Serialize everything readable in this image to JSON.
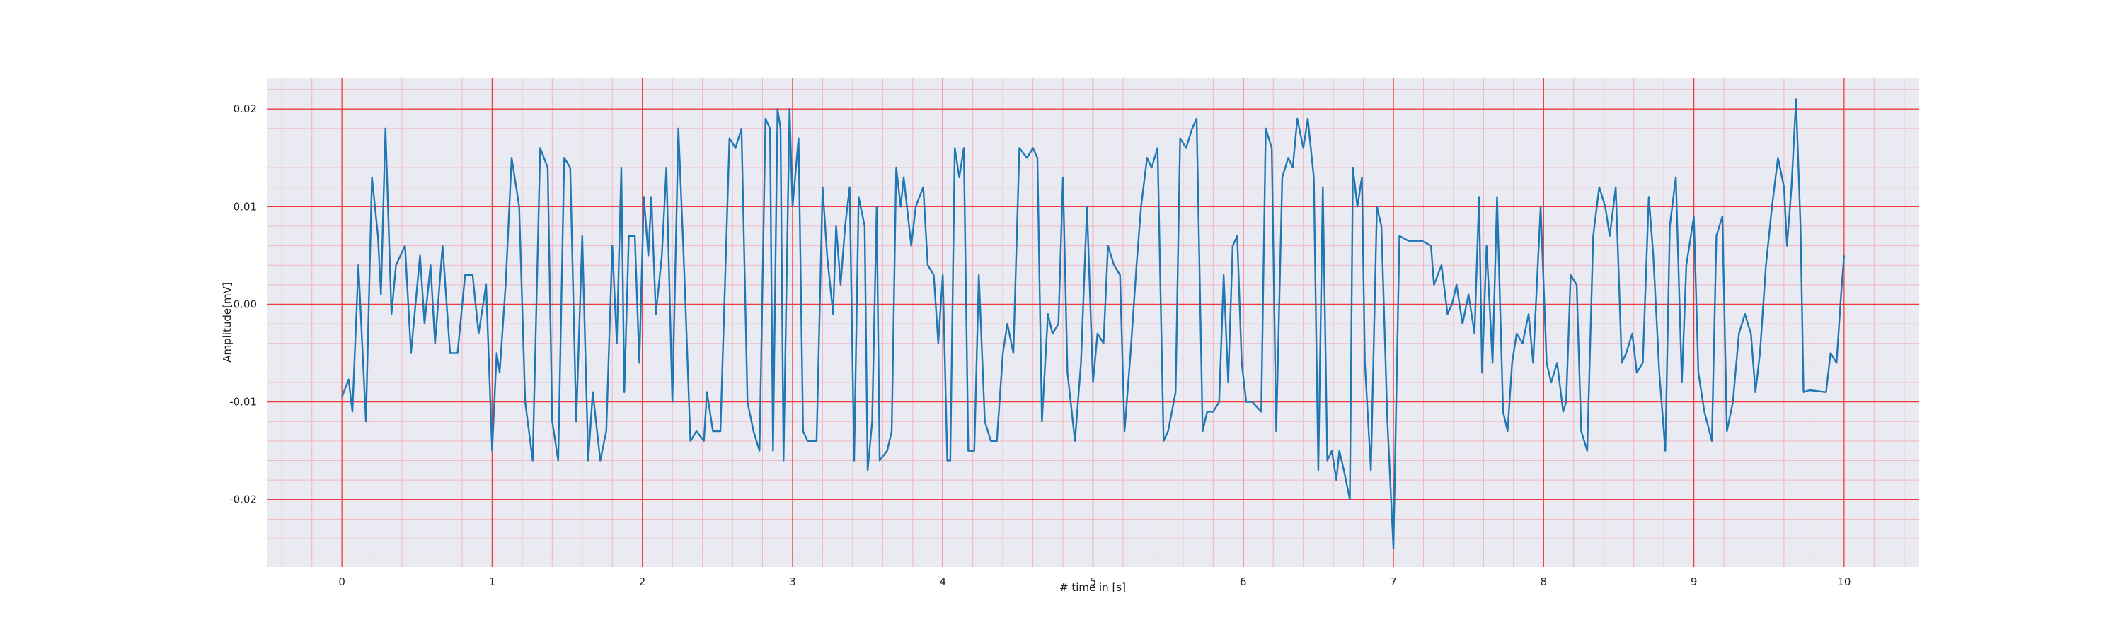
{
  "chart_data": {
    "type": "line",
    "xlabel": "# time in [s]",
    "ylabel": "Amplitude[mV]",
    "xlim": [
      -0.5,
      10.5
    ],
    "ylim": [
      -0.0269,
      0.0232
    ],
    "xticks": [
      0,
      1,
      2,
      3,
      4,
      5,
      6,
      7,
      8,
      9,
      10
    ],
    "yticks": [
      {
        "value": -0.02,
        "label": "-0.02"
      },
      {
        "value": -0.01,
        "label": "-0.01"
      },
      {
        "value": 0,
        "label": "0.00"
      },
      {
        "value": 0.01,
        "label": "0.01"
      },
      {
        "value": 0.02,
        "label": "0.02"
      }
    ],
    "xminorticks": [
      -0.4,
      -0.2,
      0.2,
      0.4,
      0.6,
      0.8,
      1.2,
      1.4,
      1.6,
      1.8,
      2.2,
      2.4,
      2.6,
      2.8,
      3.2,
      3.4,
      3.6,
      3.8,
      4.2,
      4.4,
      4.6,
      4.8,
      5.2,
      5.4,
      5.6,
      5.8,
      6.2,
      6.4,
      6.6,
      6.8,
      7.2,
      7.4,
      7.6,
      7.8,
      8.2,
      8.4,
      8.6,
      8.8,
      9.2,
      9.4,
      9.6,
      9.8,
      10.2,
      10.4
    ],
    "yminorticks": [
      -0.026,
      -0.024,
      -0.022,
      -0.018,
      -0.016,
      -0.014,
      -0.012,
      -0.008,
      -0.006,
      -0.004,
      -0.002,
      0.002,
      0.004,
      0.006,
      0.008,
      0.012,
      0.014,
      0.016,
      0.018,
      0.022
    ],
    "grid": true,
    "minor_grid": true,
    "grid_color": "#f03c3c",
    "minor_grid_color": "#f2b8c0",
    "background": "#eaeaf2",
    "x": [
      0,
      0.045,
      0.07,
      0.11,
      0.16,
      0.2,
      0.24,
      0.26,
      0.29,
      0.33,
      0.36,
      0.42,
      0.46,
      0.52,
      0.55,
      0.59,
      0.62,
      0.67,
      0.72,
      0.77,
      0.82,
      0.87,
      0.91,
      0.96,
      1.0,
      1.03,
      1.05,
      1.09,
      1.13,
      1.18,
      1.22,
      1.27,
      1.32,
      1.37,
      1.4,
      1.44,
      1.48,
      1.52,
      1.56,
      1.6,
      1.64,
      1.67,
      1.72,
      1.76,
      1.8,
      1.83,
      1.86,
      1.88,
      1.91,
      1.95,
      1.98,
      2.01,
      2.04,
      2.06,
      2.09,
      2.13,
      2.16,
      2.2,
      2.24,
      2.28,
      2.32,
      2.36,
      2.41,
      2.43,
      2.47,
      2.52,
      2.58,
      2.62,
      2.66,
      2.7,
      2.74,
      2.78,
      2.82,
      2.85,
      2.87,
      2.9,
      2.92,
      2.94,
      2.98,
      3.0,
      3.04,
      3.07,
      3.1,
      3.16,
      3.2,
      3.23,
      3.27,
      3.29,
      3.32,
      3.35,
      3.38,
      3.41,
      3.44,
      3.48,
      3.5,
      3.53,
      3.56,
      3.58,
      3.63,
      3.66,
      3.69,
      3.72,
      3.74,
      3.79,
      3.82,
      3.87,
      3.9,
      3.94,
      3.97,
      4.0,
      4.03,
      4.05,
      4.08,
      4.11,
      4.14,
      4.17,
      4.21,
      4.24,
      4.28,
      4.32,
      4.36,
      4.4,
      4.43,
      4.47,
      4.51,
      4.56,
      4.6,
      4.63,
      4.66,
      4.7,
      4.73,
      4.77,
      4.8,
      4.83,
      4.88,
      4.92,
      4.96,
      5.0,
      5.03,
      5.07,
      5.1,
      5.14,
      5.18,
      5.21,
      5.25,
      5.29,
      5.32,
      5.36,
      5.39,
      5.43,
      5.47,
      5.5,
      5.55,
      5.58,
      5.62,
      5.66,
      5.69,
      5.73,
      5.76,
      5.8,
      5.84,
      5.87,
      5.9,
      5.93,
      5.96,
      5.99,
      6.02,
      6.06,
      6.12,
      6.15,
      6.19,
      6.22,
      6.26,
      6.3,
      6.33,
      6.36,
      6.4,
      6.43,
      6.47,
      6.5,
      6.53,
      6.56,
      6.59,
      6.62,
      6.64,
      6.67,
      6.71,
      6.73,
      6.76,
      6.79,
      6.81,
      6.85,
      6.89,
      6.92,
      6.96,
      7.0,
      7.04,
      7.1,
      7.19,
      7.25,
      7.27,
      7.32,
      7.36,
      7.39,
      7.42,
      7.46,
      7.5,
      7.54,
      7.57,
      7.59,
      7.62,
      7.66,
      7.69,
      7.73,
      7.76,
      7.79,
      7.82,
      7.86,
      7.9,
      7.93,
      7.98,
      8.02,
      8.05,
      8.09,
      8.13,
      8.15,
      8.18,
      8.22,
      8.25,
      8.29,
      8.33,
      8.37,
      8.41,
      8.44,
      8.48,
      8.52,
      8.55,
      8.59,
      8.62,
      8.66,
      8.7,
      8.73,
      8.77,
      8.81,
      8.84,
      8.88,
      8.92,
      8.95,
      9.0,
      9.03,
      9.07,
      9.12,
      9.15,
      9.19,
      9.22,
      9.26,
      9.3,
      9.34,
      9.38,
      9.41,
      9.44,
      9.48,
      9.52,
      9.56,
      9.6,
      9.62,
      9.65,
      9.68,
      9.71,
      9.73,
      9.77,
      9.88,
      9.91,
      9.95,
      9.98,
      10.0
    ],
    "series": [
      {
        "color": "#1f77b4",
        "values": [
          -0.0095,
          -0.0077,
          -0.011,
          0.004,
          -0.012,
          0.013,
          0.007,
          0.001,
          0.018,
          -0.001,
          0.004,
          0.006,
          -0.005,
          0.005,
          -0.002,
          0.004,
          -0.004,
          0.006,
          -0.005,
          -0.005,
          0.003,
          0.003,
          -0.003,
          0.002,
          -0.015,
          -0.005,
          -0.007,
          0.002,
          0.015,
          0.01,
          -0.01,
          -0.016,
          0.016,
          0.014,
          -0.012,
          -0.016,
          0.015,
          0.014,
          -0.012,
          0.007,
          -0.016,
          -0.009,
          -0.016,
          -0.013,
          0.006,
          -0.004,
          0.014,
          -0.009,
          0.007,
          0.007,
          -0.006,
          0.011,
          0.005,
          0.011,
          -0.001,
          0.005,
          0.014,
          -0.01,
          0.018,
          0.003,
          -0.014,
          -0.013,
          -0.014,
          -0.009,
          -0.013,
          -0.013,
          0.017,
          0.016,
          0.018,
          -0.01,
          -0.013,
          -0.015,
          0.019,
          0.018,
          -0.015,
          0.02,
          0.018,
          -0.016,
          0.02,
          0.01,
          0.017,
          -0.013,
          -0.014,
          -0.014,
          0.012,
          0.005,
          -0.001,
          0.008,
          0.002,
          0.008,
          0.012,
          -0.016,
          0.011,
          0.008,
          -0.017,
          -0.012,
          0.01,
          -0.016,
          -0.015,
          -0.013,
          0.014,
          0.01,
          0.013,
          0.006,
          0.01,
          0.012,
          0.004,
          0.003,
          -0.004,
          0.003,
          -0.016,
          -0.016,
          0.016,
          0.013,
          0.016,
          -0.015,
          -0.015,
          0.003,
          -0.012,
          -0.014,
          -0.014,
          -0.005,
          -0.002,
          -0.005,
          0.016,
          0.015,
          0.016,
          0.015,
          -0.012,
          -0.001,
          -0.003,
          -0.002,
          0.013,
          -0.007,
          -0.014,
          -0.006,
          0.01,
          -0.008,
          -0.003,
          -0.004,
          0.006,
          0.004,
          0.003,
          -0.013,
          -0.005,
          0.004,
          0.01,
          0.015,
          0.014,
          0.016,
          -0.014,
          -0.013,
          -0.009,
          0.017,
          0.016,
          0.018,
          0.019,
          -0.013,
          -0.011,
          -0.011,
          -0.01,
          0.003,
          -0.008,
          0.006,
          0.007,
          -0.006,
          -0.01,
          -0.01,
          -0.011,
          0.018,
          0.016,
          -0.013,
          0.013,
          0.015,
          0.014,
          0.019,
          0.016,
          0.019,
          0.013,
          -0.017,
          0.012,
          -0.016,
          -0.015,
          -0.018,
          -0.015,
          -0.017,
          -0.02,
          0.014,
          0.01,
          0.013,
          -0.006,
          -0.017,
          0.01,
          0.008,
          -0.012,
          -0.025,
          0.007,
          0.0065,
          0.0065,
          0.006,
          0.002,
          0.004,
          -0.001,
          0.0,
          0.002,
          -0.002,
          0.001,
          -0.003,
          0.011,
          -0.007,
          0.006,
          -0.006,
          0.011,
          -0.011,
          -0.013,
          -0.006,
          -0.003,
          -0.004,
          -0.001,
          -0.006,
          0.01,
          -0.006,
          -0.008,
          -0.006,
          -0.011,
          -0.01,
          0.003,
          0.002,
          -0.013,
          -0.015,
          0.007,
          0.012,
          0.01,
          0.007,
          0.012,
          -0.006,
          -0.005,
          -0.003,
          -0.007,
          -0.006,
          0.011,
          0.005,
          -0.007,
          -0.015,
          0.008,
          0.013,
          -0.008,
          0.004,
          0.009,
          -0.007,
          -0.011,
          -0.014,
          0.007,
          0.009,
          -0.013,
          -0.01,
          -0.003,
          -0.001,
          -0.003,
          -0.009,
          -0.005,
          0.004,
          0.01,
          0.015,
          0.012,
          0.006,
          0.012,
          0.021,
          0.008,
          -0.009,
          -0.0088,
          -0.009,
          -0.005,
          -0.006,
          0.001,
          0.005
        ]
      }
    ]
  }
}
